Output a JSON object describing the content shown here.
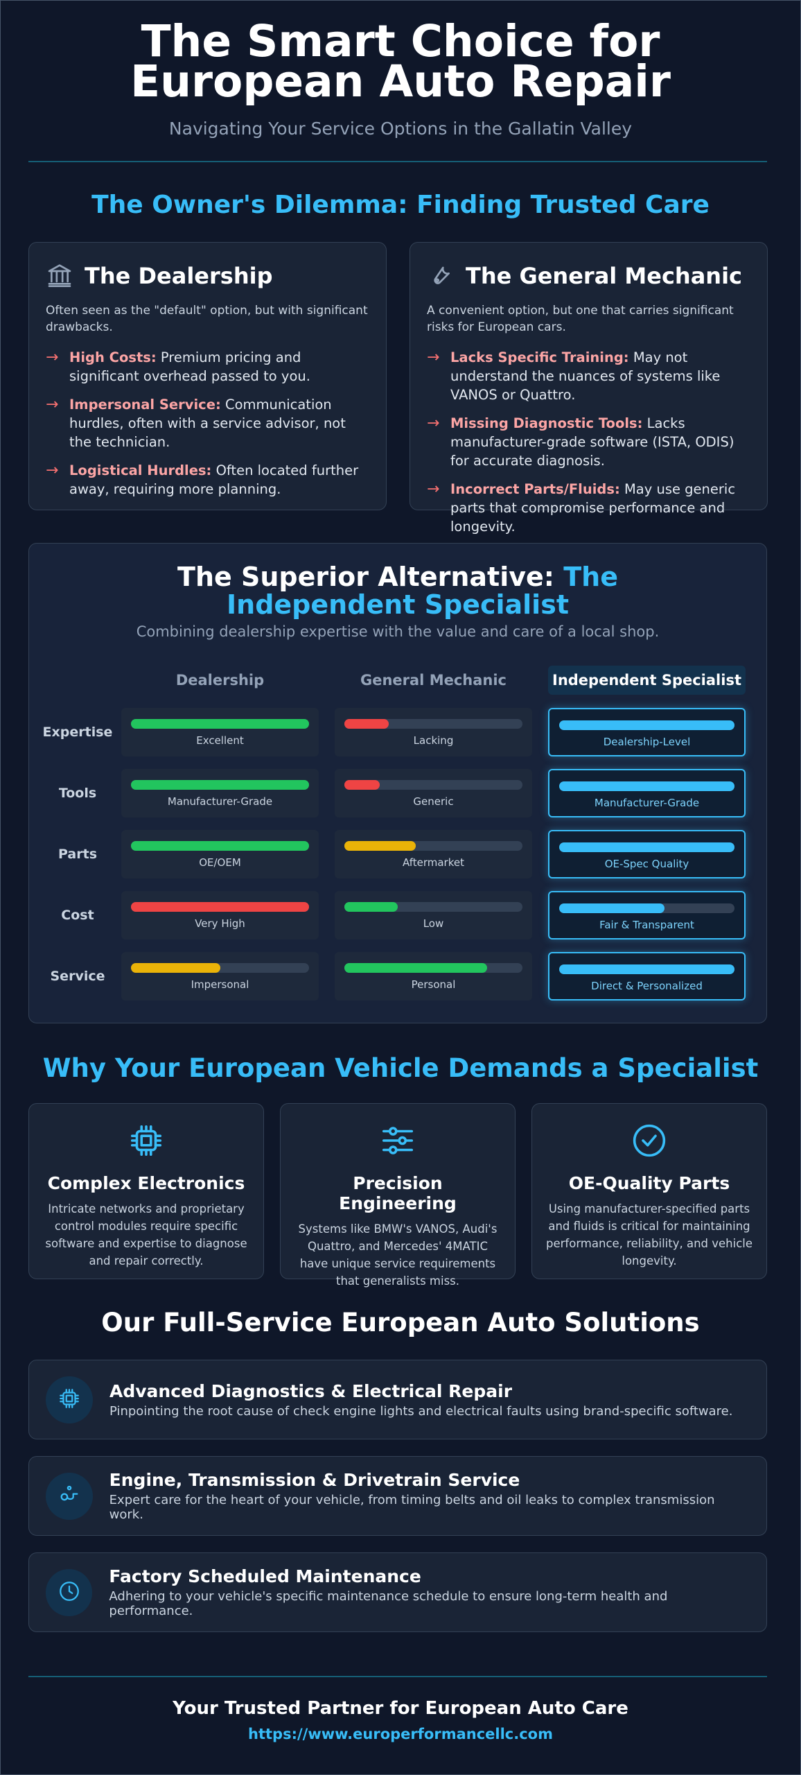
{
  "header": {
    "title": "The Smart Choice for European Auto Repair",
    "subtitle": "Navigating Your Service Options in the Gallatin Valley"
  },
  "dilemma": {
    "heading": "The Owner's Dilemma: Finding Trusted Care",
    "cards": [
      {
        "title": "The Dealership",
        "intro": "Often seen as the \"default\" option, but with significant drawbacks.",
        "points": [
          {
            "label": "High Costs:",
            "text": "Premium pricing and significant overhead passed to you."
          },
          {
            "label": "Impersonal Service:",
            "text": "Communication hurdles, often with a service advisor, not the technician."
          },
          {
            "label": "Logistical Hurdles:",
            "text": "Often located further away, requiring more planning."
          }
        ]
      },
      {
        "title": "The General Mechanic",
        "intro": "A convenient option, but one that carries significant risks for European cars.",
        "points": [
          {
            "label": "Lacks Specific Training:",
            "text": "May not understand the nuances of systems like VANOS or Quattro."
          },
          {
            "label": "Missing Diagnostic Tools:",
            "text": "Lacks manufacturer-grade software (ISTA, ODIS) for accurate diagnosis."
          },
          {
            "label": "Incorrect Parts/Fluids:",
            "text": "May use generic parts that compromise performance and longevity."
          }
        ]
      }
    ]
  },
  "alternative": {
    "heading": "The Superior Alternative:",
    "highlight": "The Independent Specialist",
    "subtitle": "Combining dealership expertise with the value and care of a local shop.",
    "columns": [
      "Dealership",
      "General Mechanic",
      "Independent Specialist"
    ],
    "rows": [
      {
        "label": "Expertise",
        "cells": [
          {
            "fill": 100,
            "color": "#22c55e",
            "text": "Excellent"
          },
          {
            "fill": 25,
            "color": "#ef4444",
            "text": "Lacking"
          },
          {
            "fill": 100,
            "color": "#38bdf8",
            "text": "Dealership-Level"
          }
        ]
      },
      {
        "label": "Tools",
        "cells": [
          {
            "fill": 100,
            "color": "#22c55e",
            "text": "Manufacturer-Grade"
          },
          {
            "fill": 20,
            "color": "#ef4444",
            "text": "Generic"
          },
          {
            "fill": 100,
            "color": "#38bdf8",
            "text": "Manufacturer-Grade"
          }
        ]
      },
      {
        "label": "Parts",
        "cells": [
          {
            "fill": 100,
            "color": "#22c55e",
            "text": "OE/OEM"
          },
          {
            "fill": 40,
            "color": "#eab308",
            "text": "Aftermarket"
          },
          {
            "fill": 100,
            "color": "#38bdf8",
            "text": "OE-Spec Quality"
          }
        ]
      },
      {
        "label": "Cost",
        "cells": [
          {
            "fill": 100,
            "color": "#ef4444",
            "text": "Very High"
          },
          {
            "fill": 30,
            "color": "#22c55e",
            "text": "Low"
          },
          {
            "fill": 60,
            "color": "#38bdf8",
            "text": "Fair & Transparent"
          }
        ]
      },
      {
        "label": "Service",
        "cells": [
          {
            "fill": 50,
            "color": "#eab308",
            "text": "Impersonal"
          },
          {
            "fill": 80,
            "color": "#22c55e",
            "text": "Personal"
          },
          {
            "fill": 100,
            "color": "#38bdf8",
            "text": "Direct & Personalized"
          }
        ]
      }
    ]
  },
  "why": {
    "heading": "Why Your European Vehicle Demands a Specialist",
    "cards": [
      {
        "title": "Complex Electronics",
        "text": "Intricate networks and proprietary control modules require specific software and expertise to diagnose and repair correctly."
      },
      {
        "title": "Precision Engineering",
        "text": "Systems like BMW's VANOS, Audi's Quattro, and Mercedes' 4MATIC have unique service requirements that generalists miss."
      },
      {
        "title": "OE-Quality Parts",
        "text": "Using manufacturer-specified parts and fluids is critical for maintaining performance, reliability, and vehicle longevity."
      }
    ]
  },
  "services": {
    "heading": "Our Full-Service European Auto Solutions",
    "items": [
      {
        "title": "Advanced Diagnostics & Electrical Repair",
        "text": "Pinpointing the root cause of check engine lights and electrical faults using brand-specific software."
      },
      {
        "title": "Engine, Transmission & Drivetrain Service",
        "text": "Expert care for the heart of your vehicle, from timing belts and oil leaks to complex transmission work."
      },
      {
        "title": "Factory Scheduled Maintenance",
        "text": "Adhering to your vehicle's specific maintenance schedule to ensure long-term health and performance."
      }
    ]
  },
  "footer": {
    "title": "Your Trusted Partner for European Auto Care",
    "url": "https://www.europerformancellc.com"
  }
}
